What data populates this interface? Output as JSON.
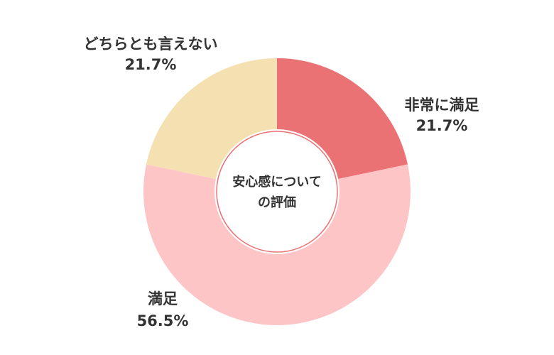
{
  "chart_data": {
    "type": "pie",
    "variant": "donut",
    "title": "",
    "center_text": [
      "安心感について",
      "の評価"
    ],
    "unit": "%",
    "slices": [
      {
        "label": "非常に満足",
        "value": 21.7,
        "value_text": "21.7%",
        "color": "#EB7274"
      },
      {
        "label": "満足",
        "value": 56.5,
        "value_text": "56.5%",
        "color": "#FEC5C7"
      },
      {
        "label": "どちらとも言えない",
        "value": 21.7,
        "value_text": "21.7%",
        "color": "#F5E0B1"
      }
    ],
    "start_angle_deg": 0,
    "direction": "clockwise",
    "legend": "none",
    "center_ring_color": "#EB7274"
  }
}
